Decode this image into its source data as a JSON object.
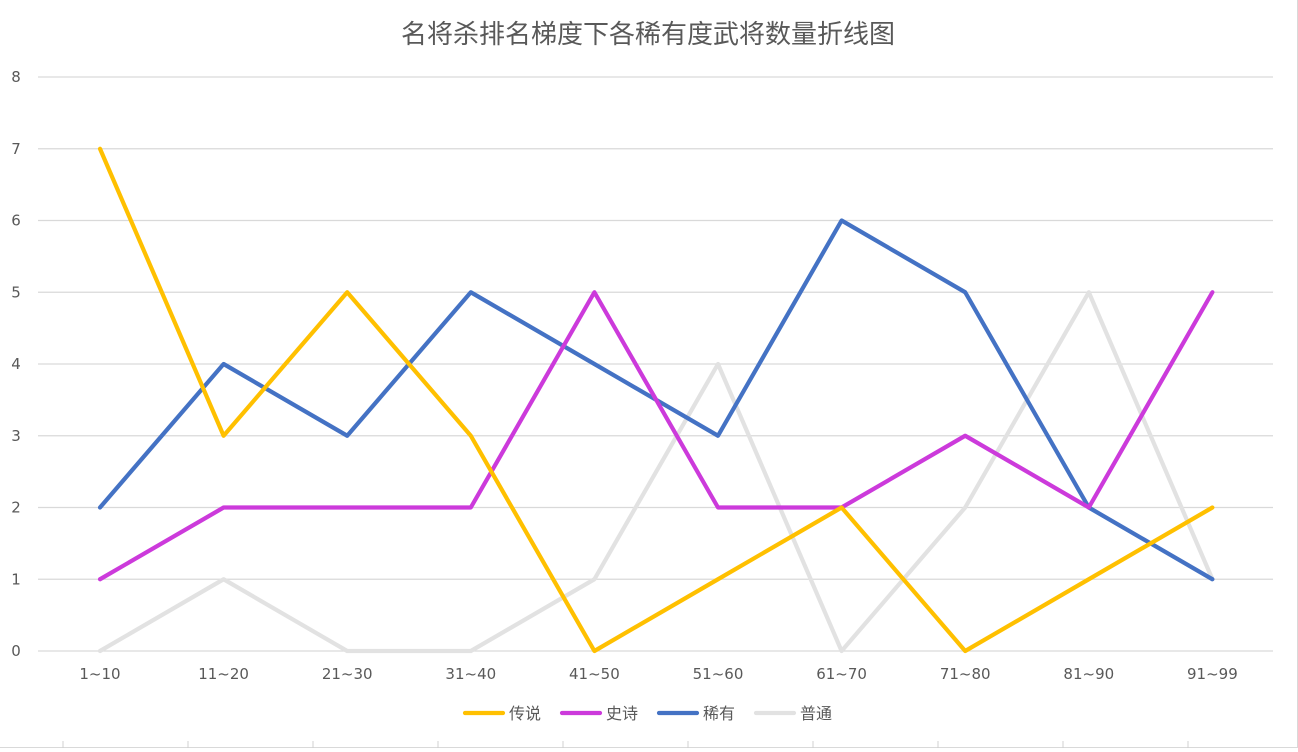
{
  "chart_data": {
    "type": "line",
    "title": "名将杀排名梯度下各稀有度武将数量折线图",
    "xlabel": "",
    "ylabel": "",
    "categories": [
      "1~10",
      "11~20",
      "21~30",
      "31~40",
      "41~50",
      "51~60",
      "61~70",
      "71~80",
      "81~90",
      "91~99"
    ],
    "ylim": [
      0,
      8
    ],
    "yticks": [
      "0",
      "1",
      "2",
      "3",
      "4",
      "5",
      "6",
      "7",
      "8"
    ],
    "grid": true,
    "legend_position": "bottom",
    "series": [
      {
        "name": "传说",
        "color": "#FFC000",
        "values": [
          7,
          3,
          5,
          3,
          0,
          1,
          2,
          0,
          1,
          2
        ]
      },
      {
        "name": "史诗",
        "color": "#CC3ADB",
        "values": [
          1,
          2,
          2,
          2,
          5,
          2,
          2,
          3,
          2,
          5
        ]
      },
      {
        "name": "稀有",
        "color": "#4472C4",
        "values": [
          2,
          4,
          3,
          5,
          4,
          3,
          6,
          5,
          2,
          1
        ]
      },
      {
        "name": "普通",
        "color": "#E2E2E2",
        "values": [
          0,
          1,
          0,
          0,
          1,
          4,
          0,
          2,
          5,
          1
        ]
      }
    ]
  }
}
